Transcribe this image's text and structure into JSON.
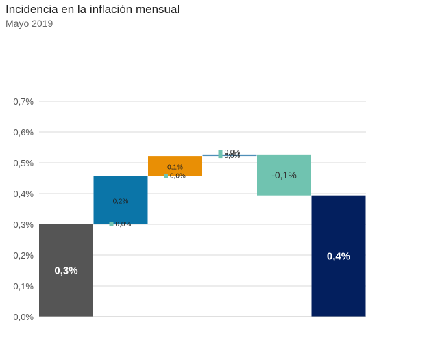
{
  "header": {
    "title": "Incidencia en la inflación mensual",
    "subtitle": "Mayo 2019"
  },
  "chart_data": {
    "type": "bar",
    "variant": "waterfall",
    "title": "Incidencia en la inflación mensual",
    "subtitle": "Mayo 2019",
    "xlabel": "",
    "ylabel": "",
    "ylim": [
      0,
      0.7
    ],
    "yticks": [
      "0,0%",
      "0,1%",
      "0,2%",
      "0,3%",
      "0,4%",
      "0,5%",
      "0,6%",
      "0,7%"
    ],
    "grid": true,
    "legend": "none",
    "bars": [
      {
        "start": 0,
        "end": 0.3,
        "label": "0,3%",
        "color": "#555555",
        "label_style": "big"
      },
      {
        "start": 0.3,
        "end": 0.457,
        "label": "0,2%",
        "color": "#0b75a8",
        "label_style": "small"
      },
      {
        "start": 0.457,
        "end": 0.522,
        "label": "0,1%",
        "color": "#e98f05",
        "label_style": "small"
      },
      {
        "start": 0.522,
        "end": 0.527,
        "label": "",
        "color": "#4f8fb8",
        "label_style": "small"
      },
      {
        "start": 0.527,
        "end": 0.394,
        "label": "-0,1%",
        "color": "#70c3b0",
        "label_style": "mid"
      },
      {
        "start": 0,
        "end": 0.394,
        "label": "0,4%",
        "color": "#031f5e",
        "label_style": "big"
      }
    ],
    "zero_markers": [
      {
        "after_bar": 1,
        "value": 0.3,
        "label": "0,0%"
      },
      {
        "after_bar": 2,
        "value": 0.457,
        "label": "0,0%"
      },
      {
        "after_bar": 3,
        "value": 0.522,
        "label": "0,0%"
      },
      {
        "after_bar": 3,
        "value": 0.527,
        "label": "0,0%"
      }
    ],
    "marker_color": "#70c3b0"
  }
}
